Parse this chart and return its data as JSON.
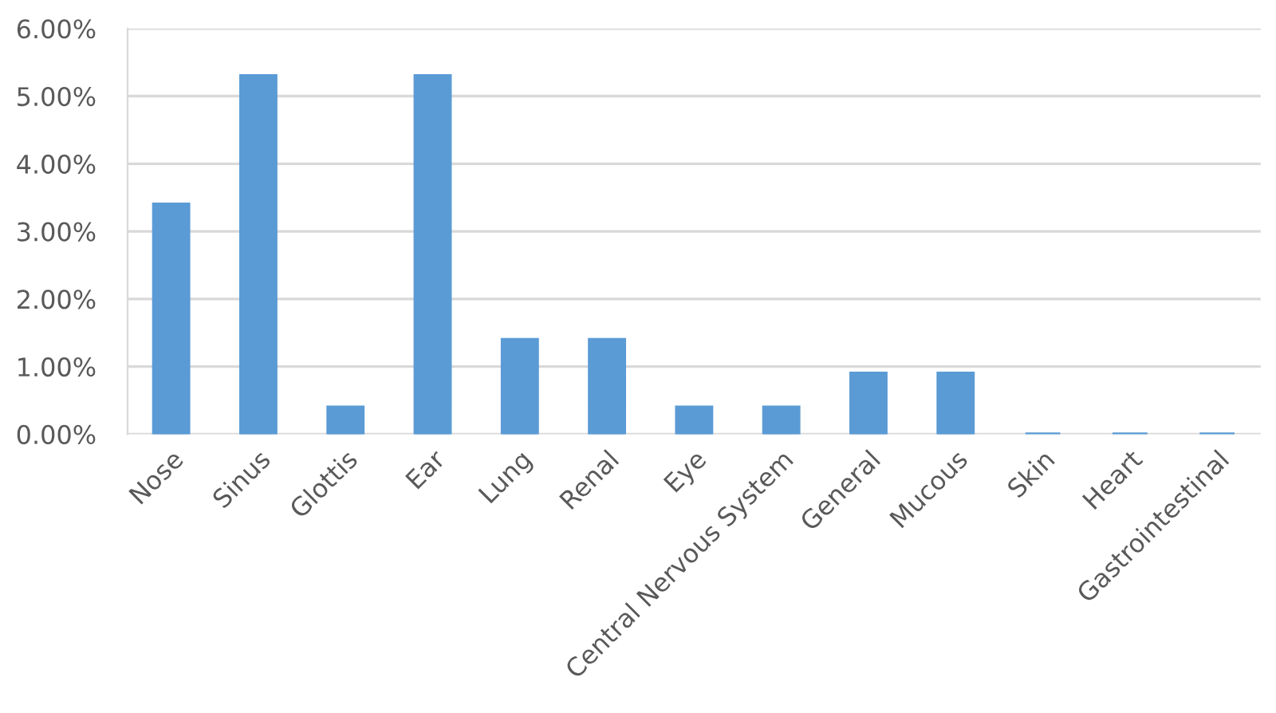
{
  "chart_data": {
    "type": "bar",
    "categories": [
      "Nose",
      "Sinus",
      "Glottis",
      "Ear",
      "Lung",
      "Renal",
      "Eye",
      "Central Nervous System",
      "General",
      "Mucous",
      "Skin",
      "Heart",
      "Gastrointestinal"
    ],
    "values": [
      3.4,
      5.3,
      0.4,
      5.3,
      1.4,
      1.4,
      0.4,
      0.4,
      0.9,
      0.9,
      0,
      0,
      0
    ],
    "color": "#5b9bd5",
    "ylim": [
      0,
      6
    ],
    "yticks": [
      {
        "value": 0,
        "label": "0.00%"
      },
      {
        "value": 1,
        "label": "1.00%"
      },
      {
        "value": 2,
        "label": "2.00%"
      },
      {
        "value": 3,
        "label": "3.00%"
      },
      {
        "value": 4,
        "label": "4.00%"
      },
      {
        "value": 5,
        "label": "5.00%"
      },
      {
        "value": 6,
        "label": "6.00%"
      }
    ],
    "grid": "y"
  }
}
